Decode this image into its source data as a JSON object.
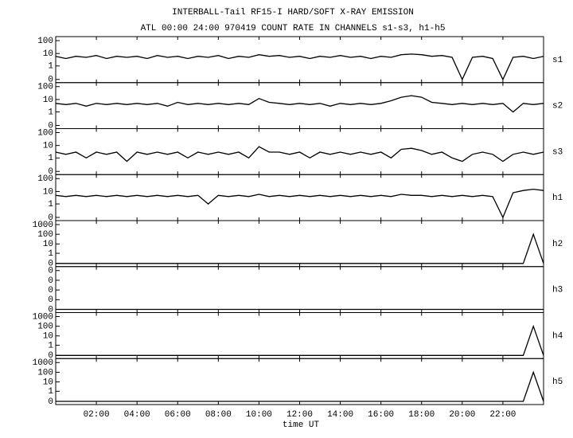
{
  "chart_data": {
    "type": "line",
    "title": "INTERBALL-Tail RF15-I HARD/SOFT X-RAY EMISSION",
    "subtitle": "ATL 00:00 24:00 970419  COUNT RATE IN CHANNELS s1-s3, h1-h5",
    "x_label": "time UT",
    "xlim": [
      0,
      24
    ],
    "xticks": [
      {
        "value": 2,
        "label": "02:00"
      },
      {
        "value": 4,
        "label": "04:00"
      },
      {
        "value": 6,
        "label": "06:00"
      },
      {
        "value": 8,
        "label": "08:00"
      },
      {
        "value": 10,
        "label": "10:00"
      },
      {
        "value": 12,
        "label": "12:00"
      },
      {
        "value": 14,
        "label": "14:00"
      },
      {
        "value": 16,
        "label": "16:00"
      },
      {
        "value": 18,
        "label": "18:00"
      },
      {
        "value": 20,
        "label": "20:00"
      },
      {
        "value": 22,
        "label": "22:00"
      }
    ],
    "x": [
      0,
      0.5,
      1,
      1.5,
      2,
      2.5,
      3,
      3.5,
      4,
      4.5,
      5,
      5.5,
      6,
      6.5,
      7,
      7.5,
      8,
      8.5,
      9,
      9.5,
      10,
      10.5,
      11,
      11.5,
      12,
      12.5,
      13,
      13.5,
      14,
      14.5,
      15,
      15.5,
      16,
      16.5,
      17,
      17.5,
      18,
      18.5,
      19,
      19.5,
      20,
      20.5,
      21,
      21.5,
      22,
      22.5,
      23,
      23.5,
      24
    ],
    "color": "#000000",
    "panels": [
      {
        "name": "s1",
        "yscale": "log",
        "ylim": [
          0,
          100
        ],
        "yticks": [
          0,
          1,
          10,
          100
        ],
        "values": [
          6,
          4,
          6,
          5,
          7,
          4,
          6,
          5,
          6,
          4,
          7,
          5,
          6,
          4,
          6,
          5,
          7,
          4,
          6,
          5,
          8,
          6,
          7,
          5,
          6,
          4,
          6,
          5,
          7,
          5,
          6,
          4,
          6,
          5,
          8,
          9,
          8,
          6,
          7,
          5,
          0,
          5,
          6,
          4,
          0,
          5,
          6,
          4,
          6
        ]
      },
      {
        "name": "s2",
        "yscale": "log",
        "ylim": [
          0,
          100
        ],
        "yticks": [
          0,
          1,
          10,
          100
        ],
        "values": [
          5,
          4,
          5,
          3,
          5,
          4,
          5,
          4,
          5,
          4,
          5,
          3,
          6,
          4,
          5,
          4,
          5,
          4,
          5,
          4,
          12,
          6,
          5,
          4,
          5,
          4,
          5,
          3,
          5,
          4,
          5,
          4,
          5,
          8,
          15,
          20,
          15,
          6,
          5,
          4,
          5,
          4,
          5,
          4,
          5,
          1,
          5,
          4,
          5
        ]
      },
      {
        "name": "s3",
        "yscale": "log",
        "ylim": [
          0,
          100
        ],
        "yticks": [
          0,
          1,
          10,
          100
        ],
        "values": [
          3,
          2,
          3,
          1,
          3,
          2,
          3,
          0.5,
          3,
          2,
          3,
          2,
          3,
          1,
          3,
          2,
          3,
          2,
          3,
          1,
          8,
          3,
          3,
          2,
          3,
          1,
          3,
          2,
          3,
          2,
          3,
          2,
          3,
          1,
          5,
          6,
          4,
          2,
          3,
          1,
          0.5,
          2,
          3,
          2,
          0.5,
          2,
          3,
          2,
          3
        ]
      },
      {
        "name": "h1",
        "yscale": "log",
        "ylim": [
          0,
          100
        ],
        "yticks": [
          0,
          1,
          10,
          100
        ],
        "values": [
          5,
          4,
          5,
          4,
          5,
          4,
          5,
          4,
          5,
          4,
          5,
          4,
          5,
          4,
          5,
          1,
          5,
          4,
          5,
          4,
          6,
          4,
          5,
          4,
          5,
          4,
          5,
          4,
          5,
          4,
          5,
          4,
          5,
          4,
          6,
          5,
          5,
          4,
          5,
          4,
          5,
          4,
          5,
          4,
          0,
          8,
          12,
          15,
          12
        ]
      },
      {
        "name": "h2",
        "yscale": "log",
        "ylim": [
          0,
          1000
        ],
        "yticks": [
          0,
          1,
          10,
          100,
          1000
        ],
        "values": [
          0,
          0,
          0,
          0,
          0,
          0,
          0,
          0,
          0,
          0,
          0,
          0,
          0,
          0,
          0,
          0,
          0,
          0,
          0,
          0,
          0,
          0,
          0,
          0,
          0,
          0,
          0,
          0,
          0,
          0,
          0,
          0,
          0,
          0,
          0,
          0,
          0,
          0,
          0,
          0,
          0,
          0,
          0,
          0,
          0,
          0,
          0,
          100,
          0
        ]
      },
      {
        "name": "h3",
        "yscale": "linear",
        "ylim": [
          0,
          1
        ],
        "yticks": [
          {
            "value": 0,
            "label": "0"
          },
          {
            "value": 0.25,
            "label": "0"
          },
          {
            "value": 0.5,
            "label": "0"
          },
          {
            "value": 0.75,
            "label": "0"
          },
          {
            "value": 1,
            "label": "0"
          }
        ],
        "values": [
          0,
          0,
          0,
          0,
          0,
          0,
          0,
          0,
          0,
          0,
          0,
          0,
          0,
          0,
          0,
          0,
          0,
          0,
          0,
          0,
          0,
          0,
          0,
          0,
          0,
          0,
          0,
          0,
          0,
          0,
          0,
          0,
          0,
          0,
          0,
          0,
          0,
          0,
          0,
          0,
          0,
          0,
          0,
          0,
          0,
          0,
          0,
          0,
          0
        ]
      },
      {
        "name": "h4",
        "yscale": "log",
        "ylim": [
          0,
          1000
        ],
        "yticks": [
          0,
          1,
          10,
          100,
          1000
        ],
        "values": [
          0,
          0,
          0,
          0,
          0,
          0,
          0,
          0,
          0,
          0,
          0,
          0,
          0,
          0,
          0,
          0,
          0,
          0,
          0,
          0,
          0,
          0,
          0,
          0,
          0,
          0,
          0,
          0,
          0,
          0,
          0,
          0,
          0,
          0,
          0,
          0,
          0,
          0,
          0,
          0,
          0,
          0,
          0,
          0,
          0,
          0,
          0,
          100,
          0
        ]
      },
      {
        "name": "h5",
        "yscale": "log",
        "ylim": [
          0,
          1000
        ],
        "yticks": [
          0,
          1,
          10,
          100,
          1000
        ],
        "values": [
          0,
          0,
          0,
          0,
          0,
          0,
          0,
          0,
          0,
          0,
          0,
          0,
          0,
          0,
          0,
          0,
          0,
          0,
          0,
          0,
          0,
          0,
          0,
          0,
          0,
          0,
          0,
          0,
          0,
          0,
          0,
          0,
          0,
          0,
          0,
          0,
          0,
          0,
          0,
          0,
          0,
          0,
          0,
          0,
          0,
          0,
          0,
          100,
          0
        ]
      }
    ]
  }
}
